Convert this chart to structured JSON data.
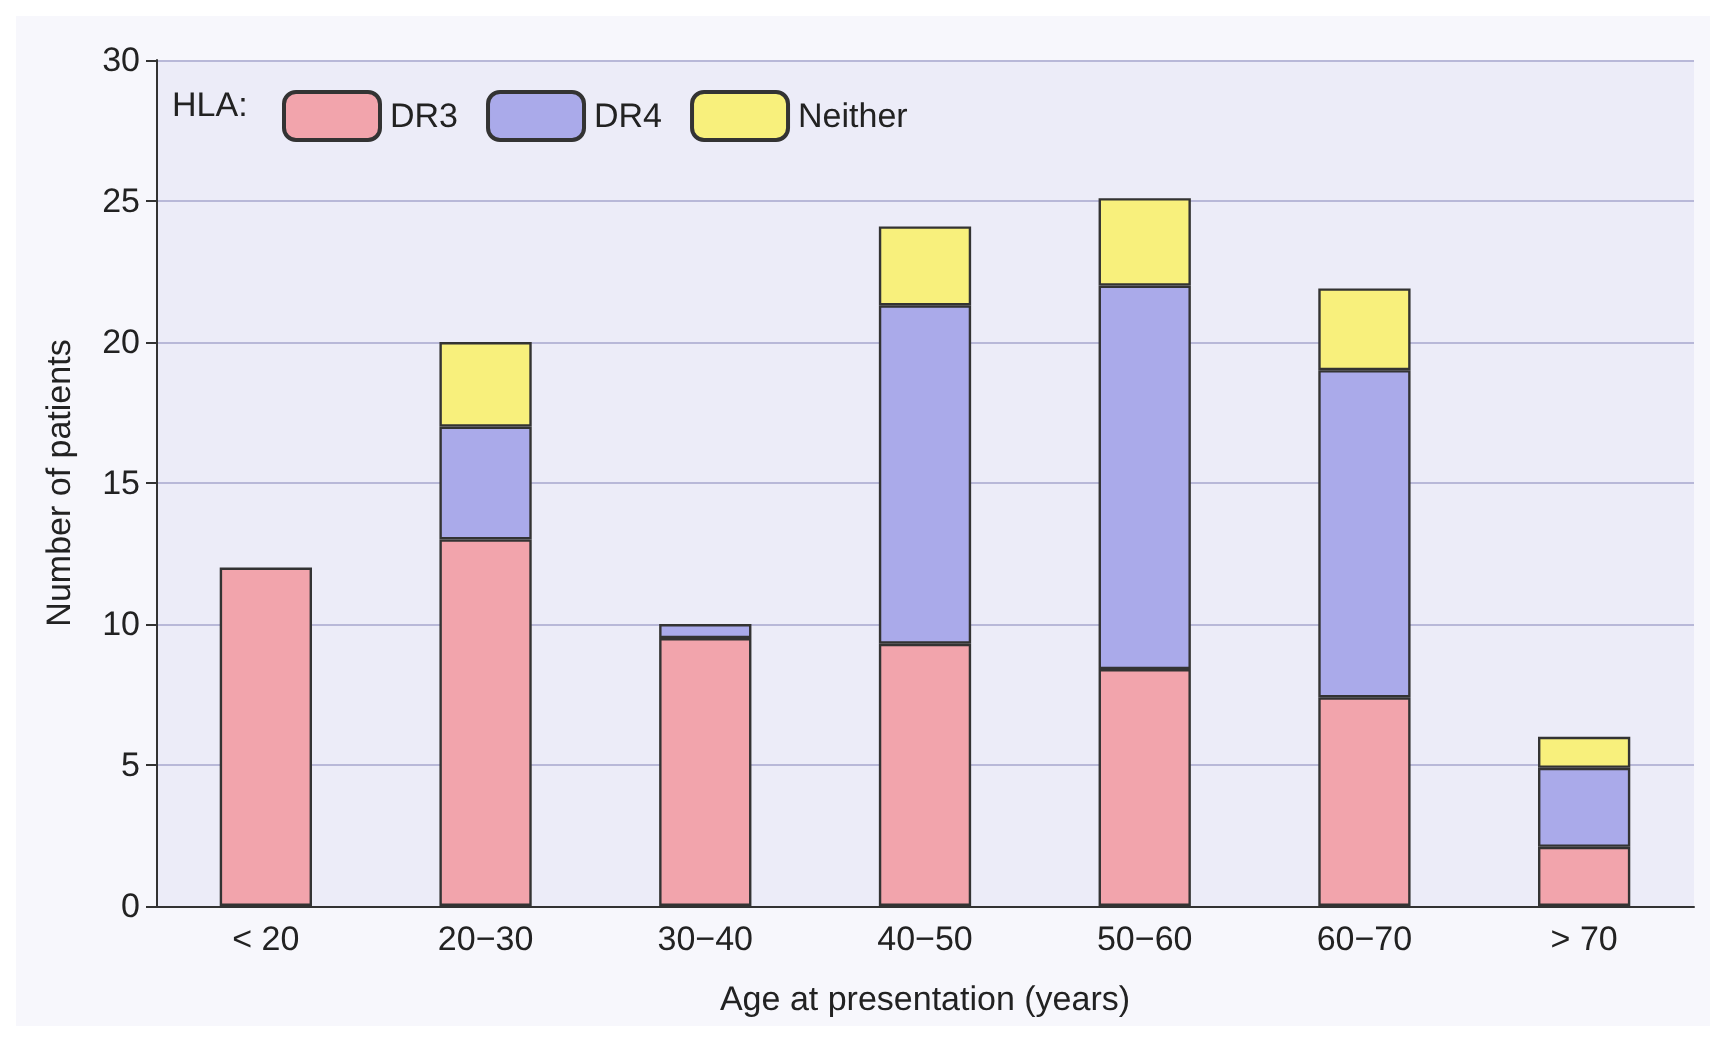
{
  "chart_data": {
    "type": "bar",
    "stacked": true,
    "xlabel": "Age at presentation (years)",
    "ylabel": "Number of patients",
    "legend_title": "HLA:",
    "legend": "top left",
    "grid": "y",
    "categories": [
      "< 20",
      "20−30",
      "30−40",
      "40−50",
      "50−60",
      "60−70",
      "> 70"
    ],
    "series": [
      {
        "name": "DR3",
        "color": "#f2a4ac",
        "values": [
          12,
          13,
          9.5,
          9.3,
          8.4,
          7.4,
          2.1
        ]
      },
      {
        "name": "DR4",
        "color": "#aaaaea",
        "values": [
          null,
          4,
          0.5,
          12,
          13.6,
          11.6,
          2.8
        ]
      },
      {
        "name": "Neither",
        "color": "#f8f07c",
        "values": [
          null,
          3,
          null,
          2.8,
          3.1,
          2.9,
          1.1
        ]
      }
    ],
    "ylim": [
      0,
      30
    ],
    "yticks": [
      0,
      5,
      10,
      15,
      20,
      25,
      30
    ]
  }
}
